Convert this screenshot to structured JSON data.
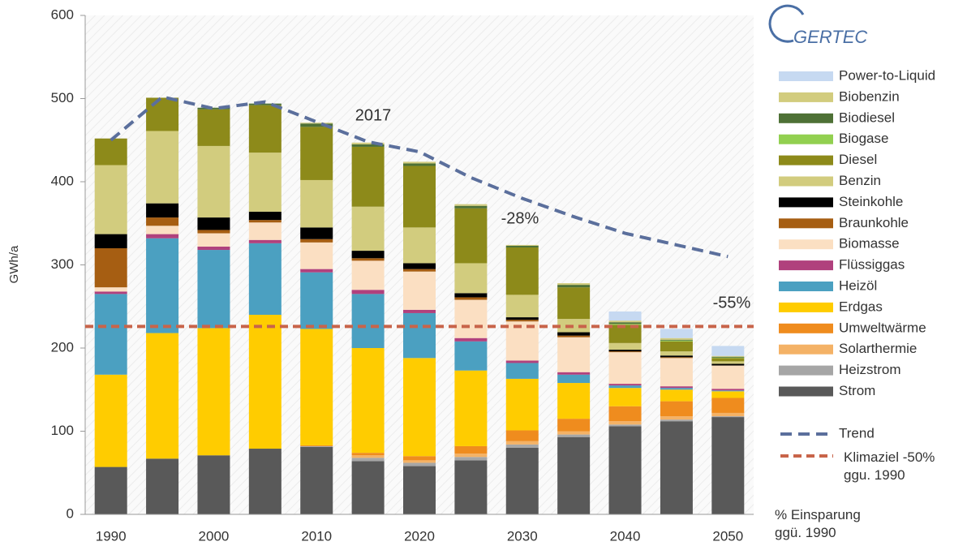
{
  "chart_data": {
    "type": "stacked_bar",
    "logo": "GERTEC",
    "ylabel": "GWh/a",
    "categories": [
      "1990",
      null,
      "2000",
      null,
      "2010",
      null,
      "2020",
      null,
      "2030",
      null,
      "2040",
      null,
      "2050"
    ],
    "ylim": [
      0,
      600
    ],
    "yticks": [
      0,
      100,
      200,
      300,
      400,
      500,
      600
    ],
    "series": [
      {
        "name": "Strom",
        "color": "#595959",
        "values": [
          57,
          67,
          71,
          79,
          81,
          64,
          58,
          65,
          80,
          93,
          106,
          112,
          117
        ]
      },
      {
        "name": "Heizstrom",
        "color": "#a6a6a6",
        "values": [
          0,
          0,
          0,
          0,
          1,
          4,
          4,
          4,
          4,
          3,
          2,
          2,
          1
        ]
      },
      {
        "name": "Solarthermie",
        "color": "#f4b266",
        "values": [
          0,
          0,
          0,
          0,
          0,
          3,
          3,
          4,
          4,
          4,
          4,
          4,
          4
        ]
      },
      {
        "name": "Umweltwärme",
        "color": "#ef8c1e",
        "values": [
          0,
          0,
          0,
          0,
          1,
          3,
          5,
          9,
          13,
          15,
          18,
          18,
          18
        ]
      },
      {
        "name": "Erdgas",
        "color": "#ffcc00",
        "values": [
          111,
          151,
          153,
          161,
          140,
          126,
          118,
          91,
          62,
          43,
          22,
          14,
          8
        ]
      },
      {
        "name": "Heizöl",
        "color": "#4ba0c1",
        "values": [
          97,
          114,
          94,
          86,
          68,
          65,
          54,
          35,
          19,
          10,
          3,
          2,
          1
        ]
      },
      {
        "name": "Flüssiggas",
        "color": "#b0417d",
        "values": [
          3,
          5,
          4,
          4,
          4,
          5,
          4,
          4,
          3,
          3,
          2,
          2,
          2
        ]
      },
      {
        "name": "Biomasse",
        "color": "#fbdfc2",
        "values": [
          5,
          10,
          16,
          21,
          32,
          35,
          46,
          46,
          47,
          42,
          38,
          34,
          28
        ]
      },
      {
        "name": "Braunkohle",
        "color": "#a65e12",
        "values": [
          47,
          10,
          4,
          3,
          4,
          3,
          3,
          3,
          2,
          2,
          1,
          1,
          0
        ]
      },
      {
        "name": "Steinkohle",
        "color": "#000000",
        "values": [
          17,
          17,
          15,
          10,
          14,
          9,
          7,
          5,
          3,
          4,
          2,
          2,
          2
        ]
      },
      {
        "name": "Benzin",
        "color": "#d2cc7e",
        "values": [
          83,
          87,
          86,
          71,
          57,
          53,
          43,
          36,
          27,
          16,
          8,
          5,
          3
        ]
      },
      {
        "name": "Diesel",
        "color": "#8d8a1a",
        "values": [
          32,
          40,
          44,
          57,
          64,
          72,
          74,
          66,
          57,
          38,
          22,
          12,
          4
        ]
      },
      {
        "name": "Biogase",
        "color": "#92d050",
        "values": [
          0,
          0,
          0,
          0,
          0,
          0,
          0,
          0,
          0,
          0,
          1,
          1,
          0.5
        ]
      },
      {
        "name": "Biodiesel",
        "color": "#4e7136",
        "values": [
          0,
          0,
          2,
          2,
          4,
          3,
          3,
          3,
          2,
          3,
          2,
          1,
          1
        ]
      },
      {
        "name": "Biobenzin",
        "color": "#d2cc7e",
        "values": [
          0,
          0,
          0,
          0,
          1,
          2,
          2,
          2,
          1,
          2,
          2,
          2,
          1
        ]
      },
      {
        "name": "Power-to-Liquid",
        "color": "#c6d9f1",
        "values": [
          0,
          0,
          0,
          0,
          0,
          0,
          0,
          0,
          0,
          0,
          11,
          11,
          12
        ]
      }
    ],
    "trend": {
      "name": "Trend",
      "color": "#5b6f9c",
      "values": [
        450,
        502,
        488,
        496,
        472,
        448,
        436,
        405,
        380,
        358,
        338,
        324,
        310
      ]
    },
    "target": {
      "name": "Klimaziel -50% ggu. 1990",
      "color": "#c8644a",
      "value": 226
    },
    "annotations": [
      "2017",
      "-28%",
      "-55%"
    ],
    "footnote": "% Einsparung ggü. 1990"
  }
}
